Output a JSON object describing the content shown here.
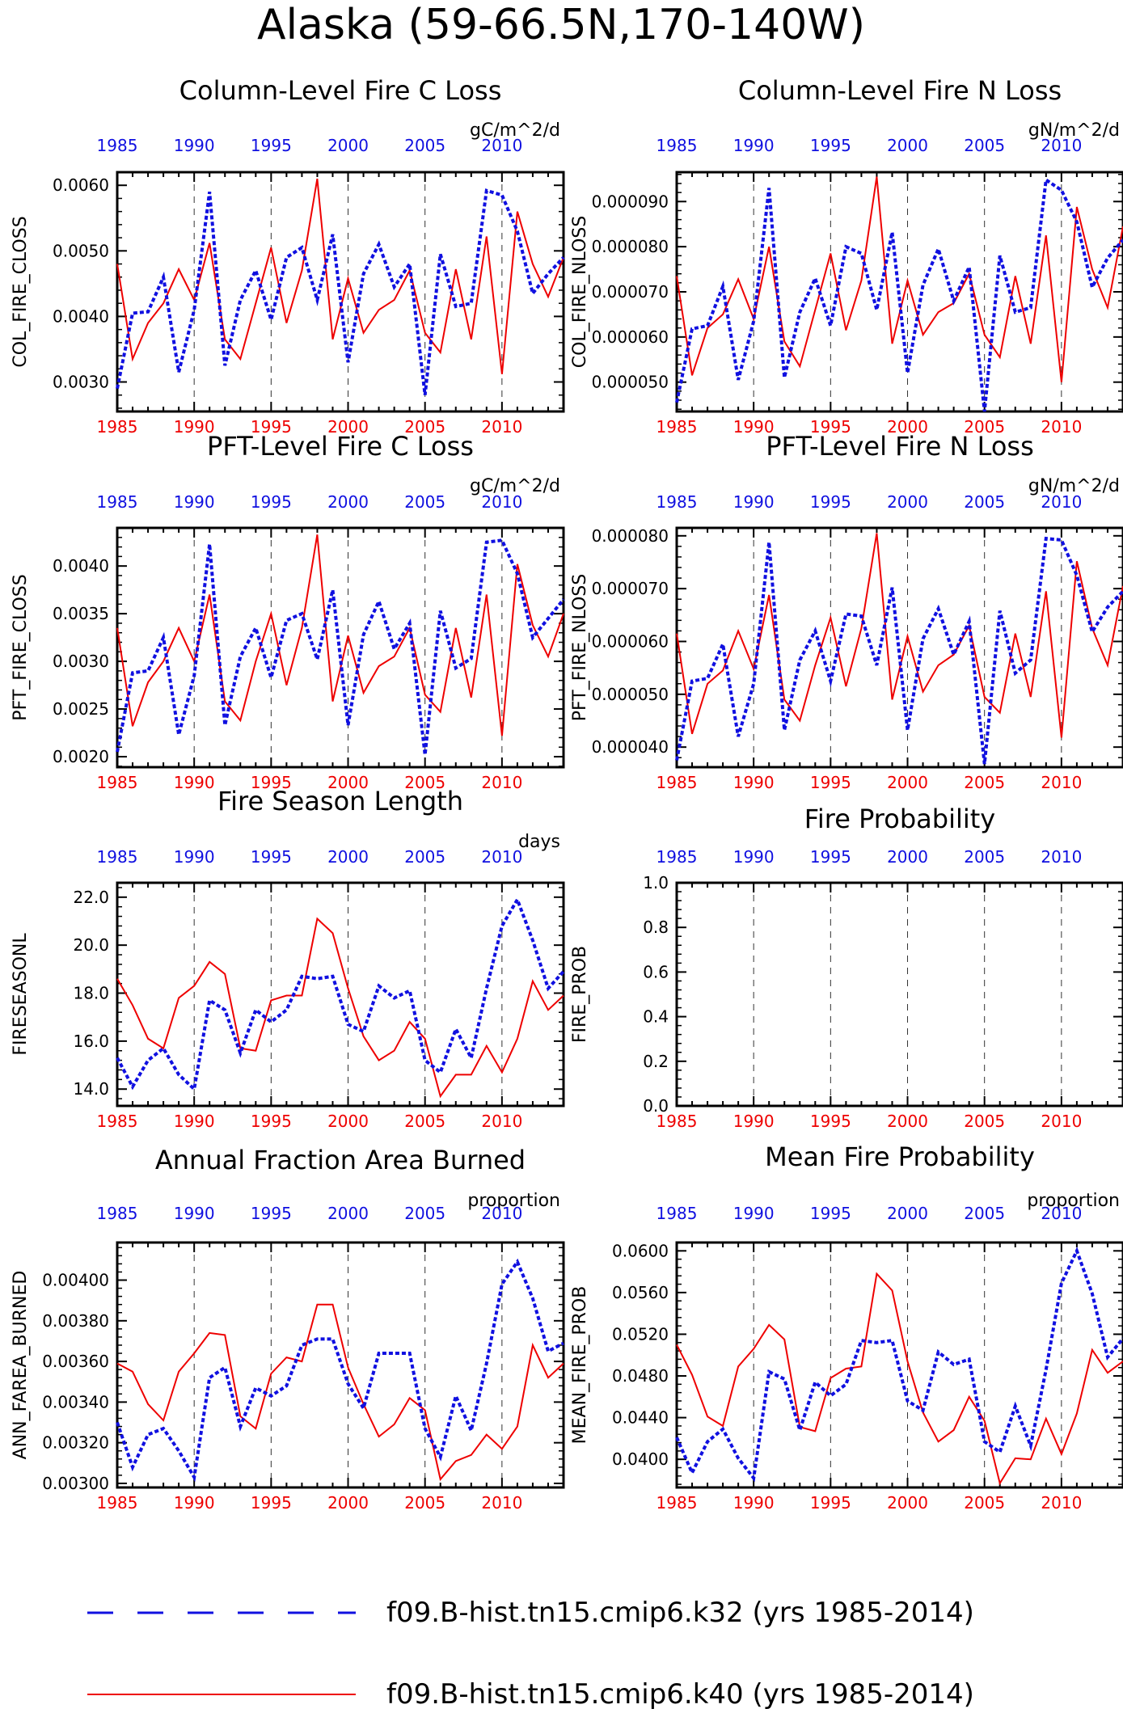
{
  "title": "Alaska (59-66.5N,170-140W)",
  "colors": {
    "red": "#ee0000",
    "blue": "#1010e0",
    "axis": "#000000",
    "grid": "#333333"
  },
  "years": [
    1985,
    1986,
    1987,
    1988,
    1989,
    1990,
    1991,
    1992,
    1993,
    1994,
    1995,
    1996,
    1997,
    1998,
    1999,
    2000,
    2001,
    2002,
    2003,
    2004,
    2005,
    2006,
    2007,
    2008,
    2009,
    2010,
    2011,
    2012,
    2013,
    2014
  ],
  "year_ticks": [
    "1985",
    "1990",
    "1995",
    "2000",
    "2005",
    "2010"
  ],
  "legend": [
    {
      "label": "f09.B-hist.tn15.cmip6.k32 (yrs 1985-2014)",
      "color": "#1010e0",
      "style": "dashed"
    },
    {
      "label": "f09.B-hist.tn15.cmip6.k40 (yrs 1985-2014)",
      "color": "#ee0000",
      "style": "solid"
    }
  ],
  "chart_data": [
    {
      "type": "line",
      "title": "Column-Level Fire C Loss",
      "units": "gC/m^2/d",
      "ylabel": "COL_FIRE_CLOSS",
      "ylim": [
        0.00255,
        0.0062
      ],
      "yticks": [
        0.003,
        0.004,
        0.005,
        0.006
      ],
      "ytick_labels": [
        "0.0030",
        "0.0040",
        "0.0050",
        "0.0060"
      ],
      "series": [
        {
          "values": [
            0.0029,
            0.00405,
            0.00407,
            0.0046,
            0.00315,
            0.0041,
            0.0059,
            0.00325,
            0.00425,
            0.0047,
            0.00395,
            0.0049,
            0.00505,
            0.00425,
            0.00525,
            0.0033,
            0.00465,
            0.0051,
            0.00445,
            0.0048,
            0.0028,
            0.00495,
            0.00415,
            0.0042,
            0.00592,
            0.00585,
            0.0053,
            0.00435,
            0.00465,
            0.0049
          ]
        },
        {
          "values": [
            0.0048,
            0.00335,
            0.0039,
            0.0042,
            0.00472,
            0.00425,
            0.00512,
            0.00365,
            0.00335,
            0.0042,
            0.00505,
            0.0039,
            0.0047,
            0.0061,
            0.00365,
            0.00458,
            0.00375,
            0.0041,
            0.00425,
            0.0047,
            0.00375,
            0.00345,
            0.00472,
            0.00365,
            0.00522,
            0.00312,
            0.0056,
            0.0048,
            0.0043,
            0.0049
          ]
        }
      ]
    },
    {
      "type": "line",
      "title": "Column-Level Fire N Loss",
      "units": "gN/m^2/d",
      "ylabel": "COL_FIRE_NLOSS",
      "ylim": [
        4.35e-05,
        9.65e-05
      ],
      "yticks": [
        5e-05,
        6e-05,
        7e-05,
        8e-05,
        9e-05
      ],
      "ytick_labels": [
        "0.000050",
        "0.000060",
        "0.000070",
        "0.000080",
        "0.000090"
      ],
      "series": [
        {
          "values": [
            4.55e-05,
            6.18e-05,
            6.25e-05,
            7.12e-05,
            5.05e-05,
            6.35e-05,
            9.3e-05,
            5.1e-05,
            6.55e-05,
            7.3e-05,
            6.25e-05,
            8e-05,
            7.85e-05,
            6.6e-05,
            8.32e-05,
            5.2e-05,
            7.15e-05,
            7.95e-05,
            6.8e-05,
            7.55e-05,
            4.35e-05,
            7.8e-05,
            6.55e-05,
            6.65e-05,
            9.48e-05,
            9.25e-05,
            8.55e-05,
            7.1e-05,
            7.75e-05,
            8.15e-05
          ]
        },
        {
          "values": [
            7.35e-05,
            5.15e-05,
            6.2e-05,
            6.5e-05,
            7.28e-05,
            6.4e-05,
            8e-05,
            5.9e-05,
            5.35e-05,
            6.6e-05,
            7.85e-05,
            6.15e-05,
            7.25e-05,
            9.55e-05,
            5.85e-05,
            7.25e-05,
            6.05e-05,
            6.55e-05,
            6.75e-05,
            7.4e-05,
            6.05e-05,
            5.55e-05,
            7.35e-05,
            5.85e-05,
            8.25e-05,
            5e-05,
            8.88e-05,
            7.5e-05,
            6.65e-05,
            8.45e-05
          ]
        }
      ]
    },
    {
      "type": "line",
      "title": "PFT-Level Fire C Loss",
      "units": "gC/m^2/d",
      "ylabel": "PFT_FIRE_CLOSS",
      "ylim": [
        0.00189,
        0.0044
      ],
      "yticks": [
        0.002,
        0.0025,
        0.003,
        0.0035,
        0.004
      ],
      "ytick_labels": [
        "0.0020",
        "0.0025",
        "0.0030",
        "0.0035",
        "0.0040"
      ],
      "series": [
        {
          "values": [
            0.00205,
            0.00288,
            0.0029,
            0.00325,
            0.00223,
            0.00285,
            0.00423,
            0.00233,
            0.00305,
            0.00335,
            0.00283,
            0.00343,
            0.0035,
            0.00302,
            0.00375,
            0.00233,
            0.00328,
            0.00363,
            0.00313,
            0.0034,
            0.00202,
            0.00353,
            0.00293,
            0.00303,
            0.00425,
            0.00427,
            0.00392,
            0.00325,
            0.00345,
            0.00365
          ]
        },
        {
          "values": [
            0.00335,
            0.00232,
            0.00278,
            0.003,
            0.00335,
            0.003,
            0.0037,
            0.00258,
            0.00238,
            0.003,
            0.0035,
            0.00275,
            0.00335,
            0.00433,
            0.00258,
            0.00327,
            0.00267,
            0.00295,
            0.00305,
            0.00335,
            0.00265,
            0.00247,
            0.00335,
            0.00262,
            0.0037,
            0.00222,
            0.00402,
            0.00338,
            0.00305,
            0.0035
          ]
        }
      ]
    },
    {
      "type": "line",
      "title": "PFT-Level Fire N Loss",
      "units": "gN/m^2/d",
      "ylabel": "PFT_FIRE_NLOSS",
      "ylim": [
        3.62e-05,
        8.15e-05
      ],
      "yticks": [
        4e-05,
        5e-05,
        6e-05,
        7e-05,
        8e-05
      ],
      "ytick_labels": [
        "0.000040",
        "0.000050",
        "0.000060",
        "0.000070",
        "0.000080"
      ],
      "series": [
        {
          "values": [
            3.75e-05,
            5.25e-05,
            5.3e-05,
            5.95e-05,
            4.2e-05,
            5.2e-05,
            7.88e-05,
            4.32e-05,
            5.65e-05,
            6.2e-05,
            5.25e-05,
            6.52e-05,
            6.48e-05,
            5.55e-05,
            7.02e-05,
            4.32e-05,
            6.05e-05,
            6.62e-05,
            5.75e-05,
            6.38e-05,
            3.68e-05,
            6.58e-05,
            5.4e-05,
            5.65e-05,
            7.95e-05,
            7.92e-05,
            7.25e-05,
            6.18e-05,
            6.65e-05,
            6.95e-05
          ]
        },
        {
          "values": [
            6.15e-05,
            4.25e-05,
            5.2e-05,
            5.45e-05,
            6.2e-05,
            5.48e-05,
            6.88e-05,
            4.9e-05,
            4.5e-05,
            5.55e-05,
            6.45e-05,
            5.15e-05,
            6.25e-05,
            8.05e-05,
            4.9e-05,
            6.1e-05,
            5.05e-05,
            5.55e-05,
            5.75e-05,
            6.3e-05,
            4.95e-05,
            4.65e-05,
            6.15e-05,
            4.95e-05,
            6.95e-05,
            4.18e-05,
            7.52e-05,
            6.25e-05,
            5.55e-05,
            7.05e-05
          ]
        }
      ]
    },
    {
      "type": "line",
      "title": "Fire Season Length",
      "units": "days",
      "ylabel": "FIRESEASONL",
      "ylim": [
        13.3,
        22.6
      ],
      "yticks": [
        14,
        16,
        18,
        20,
        22
      ],
      "ytick_labels": [
        "14.0",
        "16.0",
        "18.0",
        "20.0",
        "22.0"
      ],
      "series": [
        {
          "values": [
            15.3,
            14.1,
            15.2,
            15.7,
            14.6,
            14.0,
            17.7,
            17.3,
            15.5,
            17.3,
            16.8,
            17.3,
            18.7,
            18.6,
            18.7,
            16.7,
            16.4,
            18.3,
            17.8,
            18.1,
            15.2,
            14.7,
            16.5,
            15.3,
            18.2,
            20.8,
            21.9,
            20.2,
            18.2,
            18.9
          ]
        },
        {
          "values": [
            18.6,
            17.5,
            16.1,
            15.7,
            17.8,
            18.3,
            19.3,
            18.8,
            15.7,
            15.6,
            17.7,
            17.9,
            17.9,
            21.1,
            20.5,
            18.2,
            16.2,
            15.2,
            15.6,
            16.8,
            16.1,
            13.7,
            14.6,
            14.6,
            15.8,
            14.7,
            16.1,
            18.5,
            17.3,
            17.9
          ]
        }
      ]
    },
    {
      "type": "line",
      "title": "Fire Probability",
      "units": "",
      "ylabel": "FIRE_PROB",
      "ylim": [
        0.0,
        1.0
      ],
      "yticks": [
        0.0,
        0.2,
        0.4,
        0.6,
        0.8,
        1.0
      ],
      "ytick_labels": [
        "0.0",
        "0.2",
        "0.4",
        "0.6",
        "0.8",
        "1.0"
      ],
      "series": []
    },
    {
      "type": "line",
      "title": "Annual Fraction Area Burned",
      "units": "proportion",
      "ylabel": "ANN_FAREA_BURNED",
      "ylim": [
        0.00298,
        0.004185
      ],
      "yticks": [
        0.003,
        0.0032,
        0.0034,
        0.0036,
        0.0038,
        0.004
      ],
      "ytick_labels": [
        "0.00300",
        "0.00320",
        "0.00340",
        "0.00360",
        "0.00380",
        "0.00400"
      ],
      "series": [
        {
          "values": [
            0.0033,
            0.00308,
            0.00324,
            0.00327,
            0.00316,
            0.00303,
            0.00352,
            0.00357,
            0.00328,
            0.00347,
            0.00343,
            0.00348,
            0.00368,
            0.00371,
            0.00371,
            0.00349,
            0.00337,
            0.00364,
            0.00364,
            0.00364,
            0.00327,
            0.00313,
            0.00343,
            0.00326,
            0.00359,
            0.00398,
            0.00409,
            0.00391,
            0.00365,
            0.00369
          ]
        },
        {
          "values": [
            0.00359,
            0.00355,
            0.00339,
            0.00331,
            0.00355,
            0.00364,
            0.00374,
            0.00373,
            0.00333,
            0.00327,
            0.00354,
            0.00362,
            0.0036,
            0.00388,
            0.00388,
            0.00357,
            0.00339,
            0.00323,
            0.00329,
            0.00342,
            0.00336,
            0.00302,
            0.00311,
            0.00314,
            0.00324,
            0.00317,
            0.00328,
            0.00368,
            0.00352,
            0.00359
          ]
        }
      ]
    },
    {
      "type": "line",
      "title": "Mean Fire Probability",
      "units": "proportion",
      "ylabel": "MEAN_FIRE_PROB",
      "ylim": [
        0.0373,
        0.0608
      ],
      "yticks": [
        0.04,
        0.044,
        0.048,
        0.052,
        0.056,
        0.06
      ],
      "ytick_labels": [
        "0.0400",
        "0.0440",
        "0.0480",
        "0.0520",
        "0.0560",
        "0.0600"
      ],
      "series": [
        {
          "values": [
            0.0421,
            0.0387,
            0.0417,
            0.0429,
            0.0401,
            0.0382,
            0.0484,
            0.0477,
            0.0428,
            0.0474,
            0.0461,
            0.0472,
            0.0514,
            0.0512,
            0.0514,
            0.0456,
            0.0447,
            0.0503,
            0.0491,
            0.0496,
            0.0417,
            0.0407,
            0.0451,
            0.0413,
            0.0486,
            0.0569,
            0.06,
            0.0559,
            0.0498,
            0.0516
          ]
        },
        {
          "values": [
            0.051,
            0.0481,
            0.0441,
            0.0432,
            0.0489,
            0.0506,
            0.0529,
            0.0515,
            0.0431,
            0.0427,
            0.0478,
            0.0487,
            0.0489,
            0.0578,
            0.0562,
            0.0494,
            0.0445,
            0.0417,
            0.0428,
            0.046,
            0.0437,
            0.0377,
            0.0401,
            0.04,
            0.0439,
            0.0405,
            0.0444,
            0.0505,
            0.0483,
            0.0494
          ]
        }
      ]
    }
  ]
}
